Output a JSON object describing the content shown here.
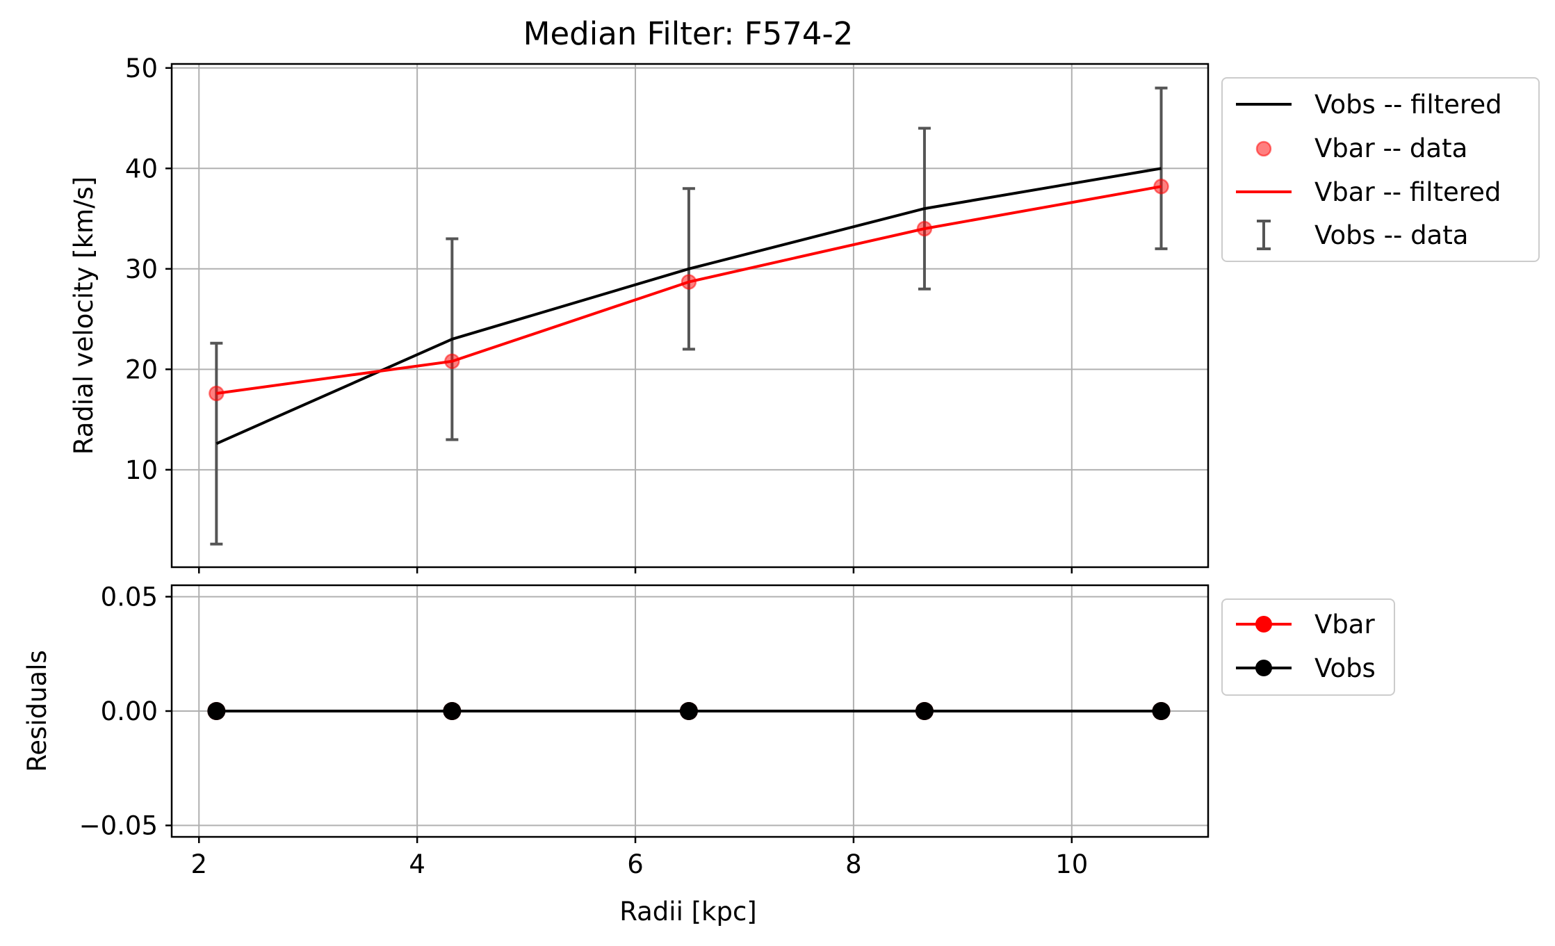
{
  "chart_data": [
    {
      "type": "line",
      "title": "Median Filter: F574-2",
      "xlabel": "",
      "ylabel": "Radial velocity [km/s]",
      "xlim": [
        1.75,
        11.25
      ],
      "ylim": [
        0.3,
        50.4
      ],
      "x_ticks": [
        2,
        4,
        6,
        8,
        10
      ],
      "y_ticks": [
        10,
        20,
        30,
        40,
        50
      ],
      "y_tick_labels": [
        "10",
        "20",
        "30",
        "40",
        "50"
      ],
      "grid": true,
      "legend_position": "outside-right-top",
      "x": [
        2.16,
        4.32,
        6.49,
        8.65,
        10.82
      ],
      "series": [
        {
          "name": "Vobs -- filtered",
          "kind": "line",
          "color": "#000000",
          "values": [
            12.6,
            23.0,
            30.0,
            36.0,
            40.0
          ]
        },
        {
          "name": "Vbar -- data",
          "kind": "scatter",
          "color": "#ff0000",
          "values": [
            17.6,
            20.8,
            28.7,
            34.0,
            38.2
          ]
        },
        {
          "name": "Vbar -- filtered",
          "kind": "line",
          "color": "#ff0000",
          "values": [
            17.6,
            20.8,
            28.7,
            34.0,
            38.2
          ]
        },
        {
          "name": "Vobs -- data",
          "kind": "errorbar",
          "color": "#555555",
          "values": [
            12.6,
            23.0,
            30.0,
            36.0,
            40.0
          ],
          "errors": [
            10.0,
            10.0,
            8.0,
            8.0,
            8.0
          ]
        }
      ]
    },
    {
      "type": "line",
      "title": "",
      "xlabel": "Radii [kpc]",
      "ylabel": "Residuals",
      "xlim": [
        1.75,
        11.25
      ],
      "ylim": [
        -0.055,
        0.055
      ],
      "x_ticks": [
        2,
        4,
        6,
        8,
        10
      ],
      "x_tick_labels": [
        "2",
        "4",
        "6",
        "8",
        "10"
      ],
      "y_ticks": [
        0.05,
        0.0,
        -0.05
      ],
      "y_tick_labels": [
        "0.05",
        "0.00",
        "−0.05"
      ],
      "grid": true,
      "legend_position": "outside-right-top",
      "x": [
        2.16,
        4.32,
        6.49,
        8.65,
        10.82
      ],
      "series": [
        {
          "name": "Vbar",
          "kind": "line-marker",
          "color": "#ff0000",
          "values": [
            0,
            0,
            0,
            0,
            0
          ]
        },
        {
          "name": "Vobs",
          "kind": "line-marker",
          "color": "#000000",
          "values": [
            0,
            0,
            0,
            0,
            0
          ]
        }
      ]
    }
  ]
}
